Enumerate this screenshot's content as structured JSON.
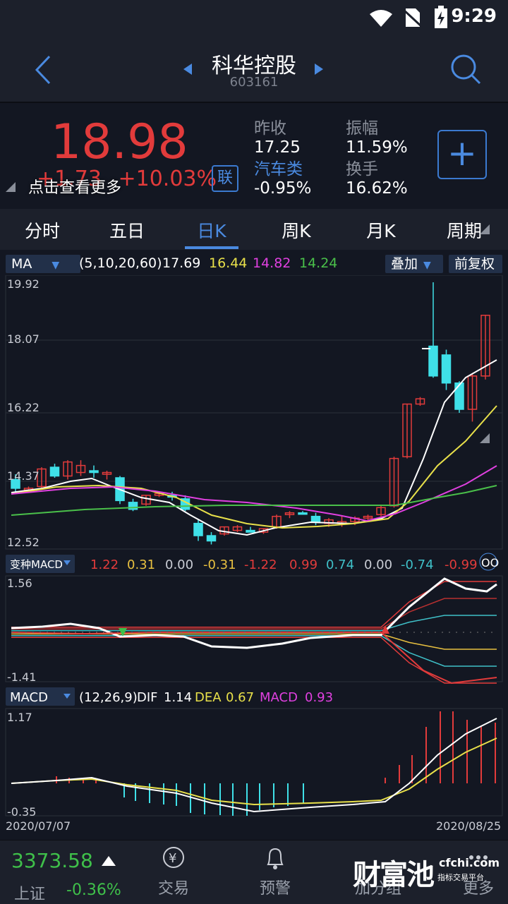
{
  "status": {
    "time": "9:29"
  },
  "header": {
    "title": "科华控股",
    "code": "603161"
  },
  "quote": {
    "price": "18.98",
    "change": "+1.73",
    "change_pct": "+10.03%",
    "tip": "点击查看更多",
    "lian": "联",
    "stats": [
      {
        "label": "昨收",
        "value": "17.25"
      },
      {
        "label": "振幅",
        "value": "11.59%"
      },
      {
        "label": "汽车类",
        "value": "-0.95%"
      },
      {
        "label": "换手",
        "value": "16.62%"
      }
    ],
    "add_label": "+"
  },
  "tabs": [
    "分时",
    "五日",
    "日K",
    "周K",
    "月K",
    "周期"
  ],
  "ma_bar": {
    "select": "MA",
    "params": "(5,10,20,60)",
    "values": [
      "17.69",
      "16.44",
      "14.82",
      "14.24"
    ],
    "overlay": "叠加",
    "adjust": "前复权"
  },
  "kline_axis": [
    "19.92",
    "18.07",
    "16.22",
    "14.37",
    "12.52"
  ],
  "vmacd_bar": {
    "select": "变种MACD",
    "values": [
      "1.22",
      "0.31",
      "0.00",
      "-0.31",
      "-1.22",
      "0.99",
      "0.74",
      "0.00",
      "-0.74",
      "-0.99"
    ]
  },
  "vmacd_axis": [
    "1.56",
    "-1.41"
  ],
  "macd_bar": {
    "select": "MACD",
    "params": "(12,26,9)",
    "dif_label": "DIF",
    "dif": "1.14",
    "dea_label": "DEA",
    "dea": "0.67",
    "macd_label": "MACD",
    "macd": "0.93"
  },
  "macd_axis": [
    "1.17",
    "-0.35"
  ],
  "dates": [
    "2020/07/07",
    "2020/08/25"
  ],
  "bottom": {
    "index_value": "3373.58",
    "index_name": "上证",
    "index_pct": "-0.36%",
    "nav": [
      "交易",
      "预警",
      "加分组",
      "更多"
    ],
    "watermark": "财富池",
    "watermark_url": "cfchi.com",
    "watermark_sub": "指标交易平台"
  },
  "colors": {
    "up": "#e23b3b",
    "down": "#3fe0e8",
    "accent": "#4a8ae0"
  }
}
